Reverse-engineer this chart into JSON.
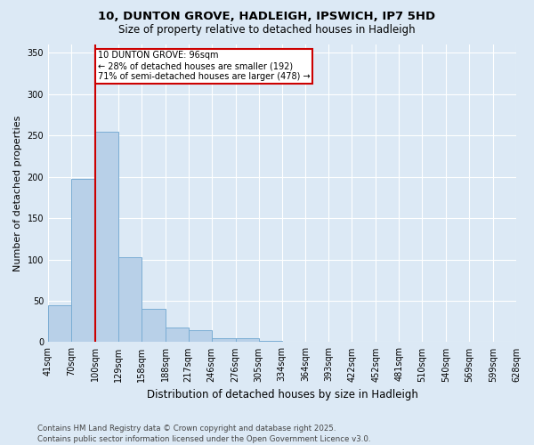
{
  "title_line1": "10, DUNTON GROVE, HADLEIGH, IPSWICH, IP7 5HD",
  "title_line2": "Size of property relative to detached houses in Hadleigh",
  "xlabel": "Distribution of detached houses by size in Hadleigh",
  "ylabel": "Number of detached properties",
  "footer": "Contains HM Land Registry data © Crown copyright and database right 2025.\nContains public sector information licensed under the Open Government Licence v3.0.",
  "bins": [
    41,
    70,
    100,
    129,
    158,
    188,
    217,
    246,
    276,
    305,
    334,
    364,
    393,
    422,
    452,
    481,
    510,
    540,
    569,
    599,
    628
  ],
  "bin_labels": [
    "41sqm",
    "70sqm",
    "100sqm",
    "129sqm",
    "158sqm",
    "188sqm",
    "217sqm",
    "246sqm",
    "276sqm",
    "305sqm",
    "334sqm",
    "364sqm",
    "393sqm",
    "422sqm",
    "452sqm",
    "481sqm",
    "510sqm",
    "540sqm",
    "569sqm",
    "599sqm",
    "628sqm"
  ],
  "counts": [
    45,
    197,
    255,
    103,
    40,
    18,
    14,
    5,
    5,
    2,
    0,
    0,
    1,
    0,
    0,
    0,
    0,
    0,
    0,
    1
  ],
  "bar_color": "#b8d0e8",
  "bar_edge_color": "#7aadd4",
  "background_color": "#dce9f5",
  "grid_color": "#ffffff",
  "red_line_x": 100,
  "red_line_color": "#cc0000",
  "annotation_text": "10 DUNTON GROVE: 96sqm\n← 28% of detached houses are smaller (192)\n71% of semi-detached houses are larger (478) →",
  "annotation_box_color": "#ffffff",
  "annotation_box_edge": "#cc0000",
  "ylim": [
    0,
    360
  ],
  "yticks": [
    0,
    50,
    100,
    150,
    200,
    250,
    300,
    350
  ],
  "xlim_min": 41,
  "xlim_max": 628
}
